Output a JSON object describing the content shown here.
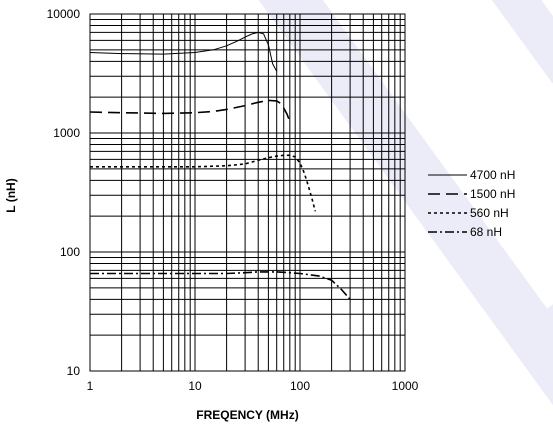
{
  "chart_data": {
    "type": "line",
    "title": "",
    "xlabel": "FREQENCY (MHz)",
    "ylabel": "L (nH)",
    "x_scale": "log",
    "y_scale": "log",
    "xlim": [
      1,
      1000
    ],
    "ylim": [
      10,
      10000
    ],
    "x_ticks": [
      1,
      10,
      100,
      1000
    ],
    "x_tick_labels": [
      "1",
      "10",
      "100",
      "1000"
    ],
    "y_ticks": [
      10,
      100,
      1000,
      10000
    ],
    "y_tick_labels": [
      "10",
      "100",
      "1000",
      "10000"
    ],
    "grid": true,
    "legend_position": "right",
    "series": [
      {
        "name": "4700 nH",
        "dash": "solid",
        "x": [
          1,
          2,
          5,
          10,
          15,
          20,
          25,
          30,
          35,
          40,
          45,
          50,
          55,
          60
        ],
        "y": [
          4750,
          4650,
          4600,
          4750,
          5000,
          5400,
          5900,
          6400,
          6800,
          7000,
          6800,
          5500,
          3800,
          3300
        ]
      },
      {
        "name": "1500 nH",
        "dash": "long-dash",
        "x": [
          1,
          2,
          5,
          10,
          15,
          20,
          25,
          30,
          40,
          50,
          60,
          65,
          70,
          75,
          80
        ],
        "y": [
          1500,
          1480,
          1460,
          1480,
          1520,
          1580,
          1640,
          1700,
          1810,
          1880,
          1860,
          1780,
          1620,
          1450,
          1250
        ]
      },
      {
        "name": "560 nH",
        "dash": "short-dash",
        "x": [
          1,
          2,
          5,
          10,
          20,
          30,
          40,
          50,
          60,
          70,
          80,
          90,
          100,
          110,
          120,
          130,
          140
        ],
        "y": [
          520,
          520,
          520,
          520,
          530,
          550,
          590,
          620,
          640,
          650,
          650,
          630,
          560,
          460,
          360,
          280,
          220
        ]
      },
      {
        "name": "68 nH",
        "dash": "dash-dot",
        "x": [
          1,
          2,
          5,
          10,
          20,
          30,
          40,
          50,
          60,
          80,
          100,
          150,
          200,
          250,
          300
        ],
        "y": [
          66,
          66,
          66,
          66,
          66,
          67,
          68,
          68,
          68,
          67,
          66,
          63,
          58,
          48,
          40
        ]
      }
    ]
  }
}
